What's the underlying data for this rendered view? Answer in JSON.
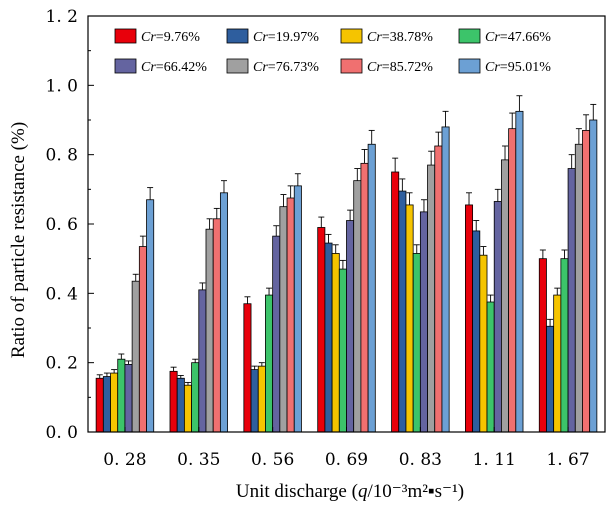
{
  "chart_data": {
    "type": "bar",
    "xlabel": "Unit discharge (q/10⁻³m²▪s⁻¹)",
    "ylabel": "Ratio of particle resistance (%)",
    "ylim": [
      0,
      1.2
    ],
    "yticks": [
      "0. 0",
      "0. 2",
      "0. 4",
      "0. 6",
      "0. 8",
      "1. 0",
      "1. 2"
    ],
    "categories": [
      "0. 28",
      "0. 35",
      "0. 56",
      "0. 69",
      "0. 83",
      "1. 11",
      "1. 67"
    ],
    "legend_placement": "top, inside plot, 2 rows",
    "error_bars": true,
    "series": [
      {
        "name": "Cr=9.76%",
        "color": "#e8000b",
        "values": [
          0.155,
          0.175,
          0.37,
          0.59,
          0.75,
          0.655,
          0.5
        ],
        "errors": [
          0.01,
          0.012,
          0.02,
          0.03,
          0.04,
          0.035,
          0.025
        ]
      },
      {
        "name": "Cr=19.97%",
        "color": "#2e5e9e",
        "values": [
          0.16,
          0.155,
          0.18,
          0.545,
          0.695,
          0.58,
          0.305
        ],
        "errors": [
          0.01,
          0.008,
          0.01,
          0.025,
          0.035,
          0.03,
          0.02
        ]
      },
      {
        "name": "Cr=38.78%",
        "color": "#f5c400",
        "values": [
          0.17,
          0.135,
          0.19,
          0.515,
          0.655,
          0.51,
          0.395
        ],
        "errors": [
          0.01,
          0.008,
          0.01,
          0.025,
          0.035,
          0.025,
          0.02
        ]
      },
      {
        "name": "Cr=47.66%",
        "color": "#3cc46a",
        "values": [
          0.21,
          0.2,
          0.395,
          0.47,
          0.515,
          0.375,
          0.5
        ],
        "errors": [
          0.015,
          0.01,
          0.02,
          0.025,
          0.025,
          0.02,
          0.025
        ]
      },
      {
        "name": "Cr=66.42%",
        "color": "#6464a0",
        "values": [
          0.195,
          0.41,
          0.565,
          0.61,
          0.635,
          0.665,
          0.76
        ],
        "errors": [
          0.01,
          0.02,
          0.03,
          0.03,
          0.035,
          0.035,
          0.04
        ]
      },
      {
        "name": "Cr=76.73%",
        "color": "#a0a0a0",
        "values": [
          0.435,
          0.585,
          0.65,
          0.725,
          0.77,
          0.785,
          0.83
        ],
        "errors": [
          0.02,
          0.03,
          0.035,
          0.035,
          0.04,
          0.04,
          0.045
        ]
      },
      {
        "name": "Cr=85.72%",
        "color": "#f07070",
        "values": [
          0.535,
          0.615,
          0.675,
          0.775,
          0.825,
          0.875,
          0.87
        ],
        "errors": [
          0.03,
          0.03,
          0.035,
          0.04,
          0.04,
          0.045,
          0.045
        ]
      },
      {
        "name": "Cr=95.01%",
        "color": "#6ca0d4",
        "values": [
          0.67,
          0.69,
          0.71,
          0.83,
          0.88,
          0.925,
          0.9
        ],
        "errors": [
          0.035,
          0.035,
          0.035,
          0.04,
          0.045,
          0.045,
          0.045
        ]
      }
    ]
  }
}
